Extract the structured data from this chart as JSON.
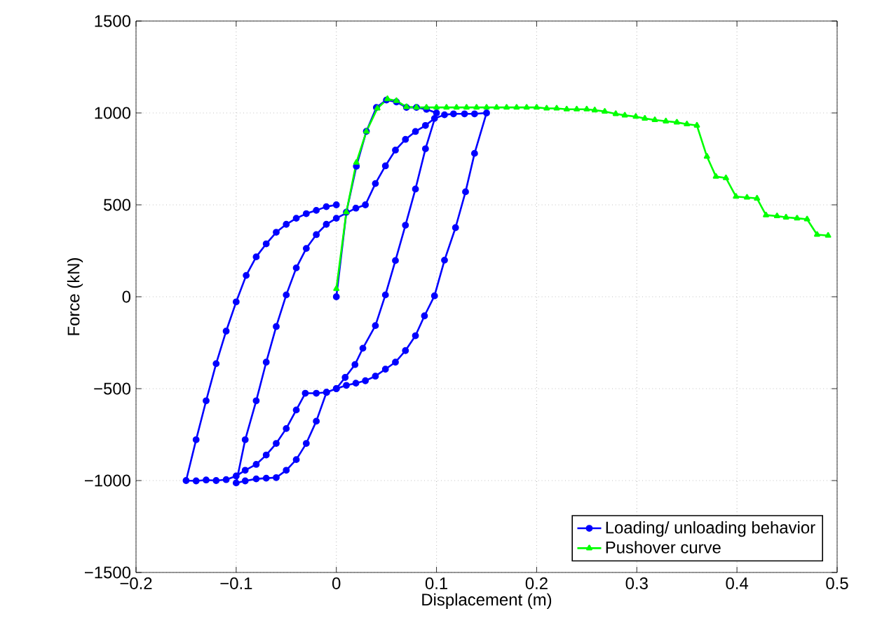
{
  "chart_data": {
    "type": "line",
    "xlabel": "Displacement (m)",
    "ylabel": "Force (kN)",
    "xlim": [
      -0.2,
      0.5
    ],
    "xticks": [
      {
        "value": -0.2,
        "label": "−0.2"
      },
      {
        "value": -0.1,
        "label": "−0.1"
      },
      0,
      0.1,
      0.2,
      0.3,
      0.4,
      0.5
    ],
    "ylim": [
      -1500,
      1500
    ],
    "yticks": [
      {
        "value": -1500,
        "label": "−1500"
      },
      {
        "value": -1000,
        "label": "−1000"
      },
      {
        "value": -500,
        "label": "−500"
      },
      0,
      500,
      1000,
      1500
    ],
    "grid": true,
    "legend": "bottom right",
    "line_style": "solid",
    "series": [
      {
        "name": "Loading/ unloading behavior",
        "color": "#0000ff",
        "marker": "circle",
        "x": [
          0,
          0.01,
          0.02,
          0.03,
          0.04,
          0.05,
          0.06,
          0.07,
          0.08,
          0.09,
          0.1,
          0.089,
          0.079,
          0.069,
          0.059,
          0.049,
          0.039,
          0.0265,
          0.0186,
          0.0088,
          0,
          -0.0098,
          -0.02,
          -0.03,
          -0.04,
          -0.05,
          -0.06,
          -0.07,
          -0.08,
          -0.091,
          -0.1,
          -0.091,
          -0.08,
          -0.07,
          -0.06,
          -0.05,
          -0.04,
          -0.03,
          -0.02,
          -0.01,
          0,
          0.0195,
          0.029,
          0.039,
          0.049,
          0.059,
          0.069,
          0.079,
          0.089,
          0.098,
          0.108,
          0.117,
          0.128,
          0.138,
          0.15,
          0.138,
          0.129,
          0.119,
          0.108,
          0.098,
          0.088,
          0.079,
          0.069,
          0.059,
          0.049,
          0.039,
          0.029,
          0.0195,
          0.01,
          0,
          -0.0098,
          -0.02,
          -0.031,
          -0.04,
          -0.05,
          -0.06,
          -0.07,
          -0.08,
          -0.091,
          -0.1,
          -0.11,
          -0.12,
          -0.13,
          -0.14,
          -0.15,
          -0.14,
          -0.13,
          -0.12,
          -0.11,
          -0.1,
          -0.09,
          -0.08,
          -0.07,
          -0.06,
          -0.05,
          -0.04,
          -0.03,
          -0.02,
          -0.01,
          0
        ],
        "values": [
          0,
          460,
          710,
          900,
          1030,
          1070,
          1060,
          1030,
          1030,
          1020,
          1000,
          805,
          586,
          389,
          197,
          10,
          -157,
          -280,
          -369,
          -439,
          -500,
          -520,
          -677,
          -798,
          -886,
          -944,
          -984,
          -987,
          -991,
          -1002,
          -1013,
          -778,
          -566,
          -356,
          -162,
          10,
          157,
          263,
          338,
          394,
          427,
          482,
          500,
          616,
          712,
          798,
          856,
          899,
          932,
          970,
          990,
          995,
          995,
          995,
          1000,
          780,
          571,
          376,
          199,
          5,
          -104,
          -212,
          -293,
          -356,
          -394,
          -432,
          -457,
          -470,
          -482,
          -500,
          -520,
          -525,
          -525,
          -616,
          -717,
          -798,
          -861,
          -912,
          -944,
          -975,
          -995,
          -1000,
          -997,
          -1002,
          -1000,
          -778,
          -566,
          -364,
          -187,
          -28,
          116,
          217,
          288,
          351,
          394,
          427,
          452,
          470,
          490,
          500
        ]
      },
      {
        "name": "Pushover curve",
        "color": "#00ff00",
        "marker": "triangle",
        "x": [
          0,
          0.01,
          0.02,
          0.03,
          0.041,
          0.051,
          0.06,
          0.07,
          0.08,
          0.09,
          0.1,
          0.11,
          0.12,
          0.13,
          0.14,
          0.15,
          0.16,
          0.17,
          0.18,
          0.19,
          0.2,
          0.21,
          0.22,
          0.23,
          0.24,
          0.25,
          0.258,
          0.268,
          0.279,
          0.288,
          0.299,
          0.308,
          0.318,
          0.329,
          0.34,
          0.35,
          0.36,
          0.37,
          0.379,
          0.389,
          0.399,
          0.41,
          0.42,
          0.429,
          0.44,
          0.449,
          0.46,
          0.47,
          0.48,
          0.491
        ],
        "values": [
          43,
          460,
          730,
          899,
          1025,
          1076,
          1066,
          1033,
          1030,
          1030,
          1030,
          1030,
          1030,
          1030,
          1030,
          1030,
          1030,
          1030,
          1030,
          1030,
          1030,
          1025,
          1025,
          1020,
          1020,
          1020,
          1015,
          1008,
          995,
          987,
          980,
          970,
          962,
          955,
          949,
          939,
          932,
          763,
          654,
          646,
          545,
          540,
          535,
          444,
          439,
          432,
          427,
          422,
          338,
          333
        ]
      }
    ]
  }
}
